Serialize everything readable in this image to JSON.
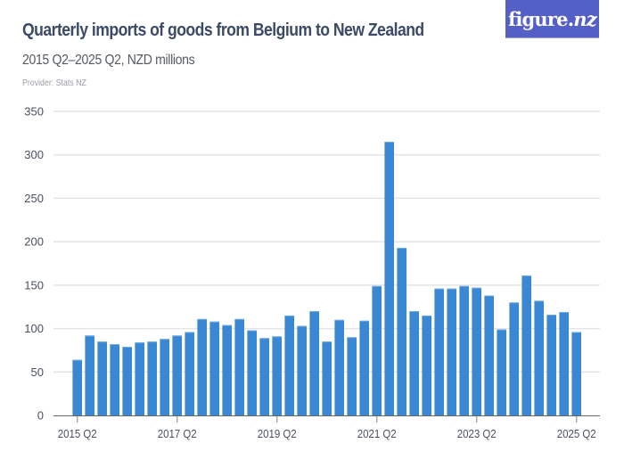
{
  "header": {
    "title": "Quarterly imports of goods from Belgium to New Zealand",
    "subtitle": "2015 Q2–2025 Q2, NZD millions",
    "provider": "Provider: Stats NZ",
    "logo_main": "figure.",
    "logo_suffix": "nz"
  },
  "colors": {
    "bar": "#3a87d3",
    "bar_top": "#6fa9e0",
    "grid": "#e4e4e4",
    "axis": "#666666",
    "tick": "#aaaaaa",
    "logo_bg": "#5560c7",
    "title": "#3b4a66"
  },
  "chart_data": {
    "type": "bar",
    "title": "Quarterly imports of goods from Belgium to New Zealand",
    "subtitle": "2015 Q2–2025 Q2, NZD millions",
    "xlabel": "",
    "ylabel": "NZD millions",
    "ylim": [
      0,
      350
    ],
    "yticks": [
      0,
      50,
      100,
      150,
      200,
      250,
      300,
      350
    ],
    "grid": true,
    "legend": null,
    "xtick_labels": [
      "2015 Q2",
      "2017 Q2",
      "2019 Q2",
      "2021 Q2",
      "2023 Q2",
      "2025 Q2"
    ],
    "xtick_indices": [
      0,
      8,
      16,
      24,
      32,
      40
    ],
    "categories": [
      "2015 Q2",
      "2015 Q3",
      "2015 Q4",
      "2016 Q1",
      "2016 Q2",
      "2016 Q3",
      "2016 Q4",
      "2017 Q1",
      "2017 Q2",
      "2017 Q3",
      "2017 Q4",
      "2018 Q1",
      "2018 Q2",
      "2018 Q3",
      "2018 Q4",
      "2019 Q1",
      "2019 Q2",
      "2019 Q3",
      "2019 Q4",
      "2020 Q1",
      "2020 Q2",
      "2020 Q3",
      "2020 Q4",
      "2021 Q1",
      "2021 Q2",
      "2021 Q3",
      "2021 Q4",
      "2022 Q1",
      "2022 Q2",
      "2022 Q3",
      "2022 Q4",
      "2023 Q1",
      "2023 Q2",
      "2023 Q3",
      "2023 Q4",
      "2024 Q1",
      "2024 Q2",
      "2024 Q3",
      "2024 Q4",
      "2025 Q1",
      "2025 Q2"
    ],
    "values": [
      64,
      92,
      85,
      82,
      79,
      84,
      85,
      88,
      92,
      96,
      111,
      108,
      104,
      111,
      98,
      89,
      91,
      115,
      103,
      120,
      85,
      110,
      90,
      109,
      149,
      315,
      193,
      120,
      115,
      146,
      146,
      149,
      147,
      138,
      99,
      130,
      161,
      132,
      116,
      119,
      96
    ]
  }
}
